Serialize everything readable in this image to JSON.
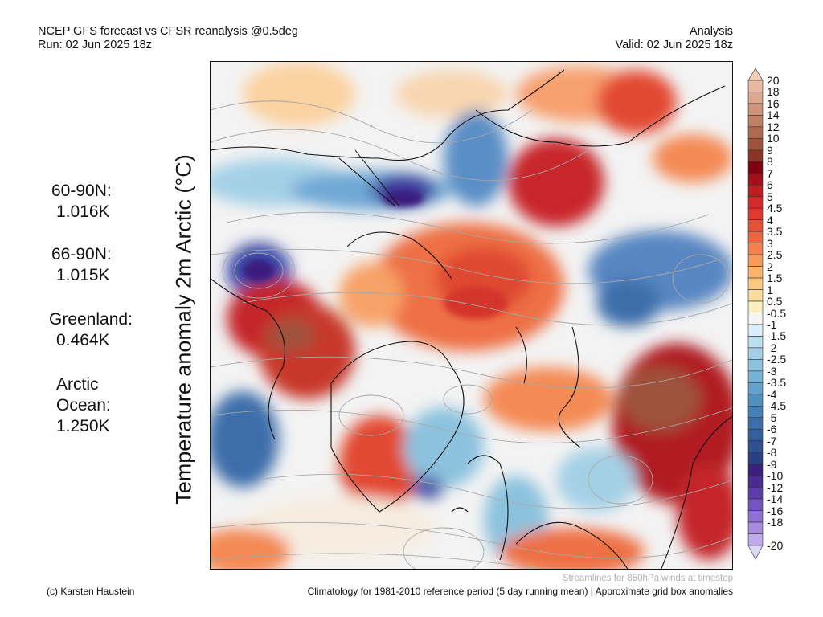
{
  "header": {
    "left_line1": "NCEP GFS forecast vs CFSR reanalysis @0.5deg",
    "left_line2": "Run: 02 Jun 2025 18z",
    "right_line1": "Analysis",
    "right_line2": "Valid: 02 Jun 2025 18z"
  },
  "axis_label": "Temperature anomaly 2m Arctic (°C)",
  "stats": [
    {
      "label": "60-90N:",
      "value": "1.016K"
    },
    {
      "label": "66-90N:",
      "value": "1.015K"
    },
    {
      "label": "Greenland:",
      "value": "0.464K"
    },
    {
      "label_line1": "Arctic",
      "label_line2": "Ocean:",
      "value": "1.250K"
    }
  ],
  "colorbar": {
    "labels": [
      "20",
      "18",
      "16",
      "14",
      "12",
      "10",
      "9",
      "8",
      "7",
      "6",
      "5",
      "4.5",
      "4",
      "3.5",
      "3",
      "2.5",
      "2",
      "1.5",
      "1",
      "0.5",
      "-0.5",
      "-1",
      "-1.5",
      "-2",
      "-2.5",
      "-3",
      "-3.5",
      "-4",
      "-4.5",
      "-5",
      "-6",
      "-7",
      "-8",
      "-9",
      "-10",
      "-12",
      "-14",
      "-16",
      "-18",
      "-20"
    ],
    "colors": [
      "#e8b8a0",
      "#dca88e",
      "#cf957a",
      "#c08065",
      "#b06a50",
      "#9e533c",
      "#8a3424",
      "#800010",
      "#a10f18",
      "#bf1c22",
      "#d32a2a",
      "#df3b30",
      "#e85038",
      "#ee6640",
      "#f4804c",
      "#f89a5a",
      "#fcb26a",
      "#fdc880",
      "#fddd9c",
      "#f8eebe",
      "#f4f4f4",
      "#d8eefa",
      "#bde0f0",
      "#a4d0e6",
      "#8cc2de",
      "#76b2d6",
      "#62a2cc",
      "#5090c0",
      "#4580b6",
      "#3c6eaa",
      "#35609e",
      "#2e4f92",
      "#2a3e86",
      "#3a1f7e",
      "#482a92",
      "#5c3eaa",
      "#7456c2",
      "#8c70d4",
      "#a68ae2",
      "#c0aaee",
      "#d8ccf6"
    ],
    "upper_arrow_color": "#f4cdb8",
    "lower_arrow_color": "#dcd8fb"
  },
  "footer": {
    "streamlines": "Streamlines for 850hPa winds at timestep",
    "credit": "(c) Karsten Haustein",
    "climatology": "Climatology for 1981-2010 reference period (5 day running mean) | Approximate grid box anomalies"
  }
}
